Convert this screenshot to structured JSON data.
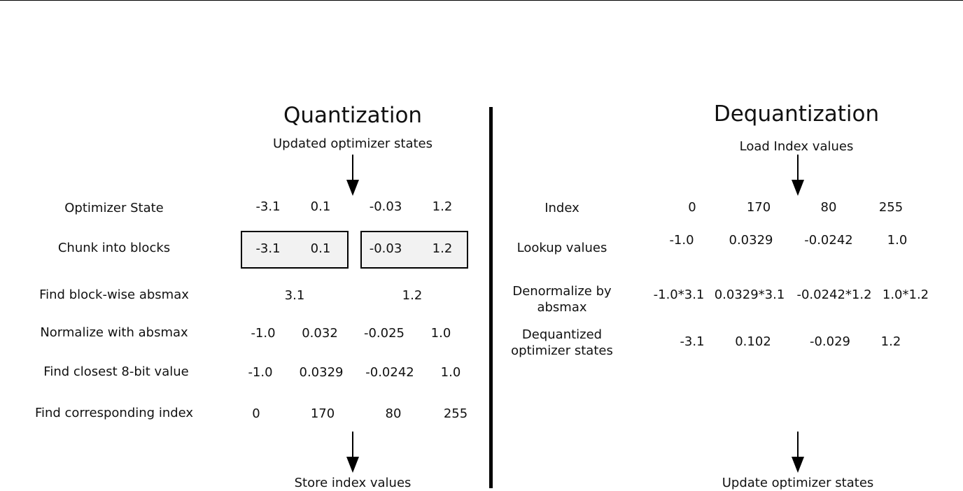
{
  "quantization": {
    "title": "Quantization",
    "input_label": "Updated optimizer states",
    "output_label": "Store index values",
    "rows": [
      {
        "label": "Optimizer State",
        "values": [
          "-3.1",
          "0.1",
          "-0.03",
          "1.2"
        ]
      },
      {
        "label": "Chunk into blocks",
        "values": [
          "-3.1",
          "0.1",
          "-0.03",
          "1.2"
        ]
      },
      {
        "label": "Find block-wise absmax",
        "values": [
          "3.1",
          "1.2"
        ]
      },
      {
        "label": "Normalize with absmax",
        "values": [
          "-1.0",
          "0.032",
          "-0.025",
          "1.0"
        ]
      },
      {
        "label": "Find closest 8-bit value",
        "values": [
          "-1.0",
          "0.0329",
          "-0.0242",
          "1.0"
        ]
      },
      {
        "label": "Find corresponding index",
        "values": [
          "0",
          "170",
          "80",
          "255"
        ]
      }
    ]
  },
  "dequantization": {
    "title": "Dequantization",
    "input_label": "Load Index values",
    "output_label": "Update optimizer states",
    "rows": [
      {
        "label": "Index",
        "values": [
          "0",
          "170",
          "80",
          "255"
        ]
      },
      {
        "label": "Lookup values",
        "values": [
          "-1.0",
          "0.0329",
          "-0.0242",
          "1.0"
        ]
      },
      {
        "label": "Denormalize by absmax",
        "values": [
          "-1.0*3.1",
          "0.0329*3.1",
          "-0.0242*1.2",
          "1.0*1.2"
        ]
      },
      {
        "label": "Dequantized optimizer states",
        "values": [
          "-3.1",
          "0.102",
          "-0.029",
          "1.2"
        ]
      }
    ]
  }
}
